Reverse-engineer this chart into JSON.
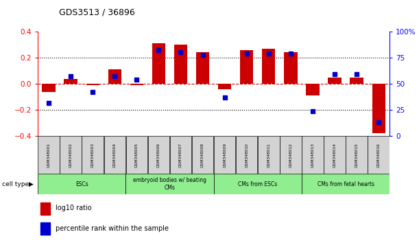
{
  "title": "GDS3513 / 36896",
  "samples": [
    "GSM348001",
    "GSM348002",
    "GSM348003",
    "GSM348004",
    "GSM348005",
    "GSM348006",
    "GSM348007",
    "GSM348008",
    "GSM348009",
    "GSM348010",
    "GSM348011",
    "GSM348012",
    "GSM348013",
    "GSM348014",
    "GSM348015",
    "GSM348016"
  ],
  "log10_ratio": [
    -0.06,
    0.04,
    -0.01,
    0.11,
    -0.01,
    0.31,
    0.3,
    0.24,
    -0.04,
    0.26,
    0.27,
    0.24,
    -0.09,
    0.05,
    0.05,
    -0.38
  ],
  "percentile_rank": [
    32,
    57,
    42,
    57,
    54,
    82,
    80,
    78,
    37,
    79,
    79,
    79,
    24,
    59,
    59,
    13
  ],
  "cell_types": [
    {
      "label": "ESCs",
      "start": 0,
      "end": 4
    },
    {
      "label": "embryoid bodies w/ beating\nCMs",
      "start": 4,
      "end": 8
    },
    {
      "label": "CMs from ESCs",
      "start": 8,
      "end": 12
    },
    {
      "label": "CMs from fetal hearts",
      "start": 12,
      "end": 16
    }
  ],
  "bar_color_red": "#CC0000",
  "bar_color_blue": "#0000CC",
  "ylim_left": [
    -0.4,
    0.4
  ],
  "ylim_right": [
    0,
    100
  ],
  "yticks_left": [
    -0.4,
    -0.2,
    0.0,
    0.2,
    0.4
  ],
  "yticks_right": [
    0,
    25,
    50,
    75,
    100
  ],
  "ytick_right_labels": [
    "0",
    "25",
    "50",
    "75",
    "100%"
  ],
  "background_color": "#ffffff",
  "cell_type_color": "#90EE90",
  "label_box_color": "#D3D3D3"
}
